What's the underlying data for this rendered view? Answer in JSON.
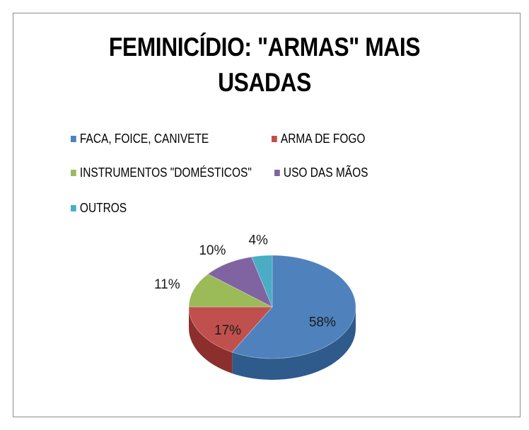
{
  "chart_data": {
    "type": "pie",
    "title": "FEMINICÍDIO: \"ARMAS\" MAIS USADAS",
    "title_lines": [
      "FEMINICÍDIO: \"ARMAS\" MAIS",
      "USADAS"
    ],
    "legend_position": "top",
    "slices": [
      {
        "label": "FACA, FOICE, CANIVETE",
        "value": 58,
        "value_label": "58%",
        "color": "#4f81bd",
        "side_color": "#2f5a8c"
      },
      {
        "label": "ARMA DE FOGO",
        "value": 17,
        "value_label": "17%",
        "color": "#c0504d",
        "side_color": "#8c2f2c"
      },
      {
        "label": "INSTRUMENTOS \"DOMÉSTICOS\"",
        "value": 11,
        "value_label": "11%",
        "color": "#9bbb59",
        "side_color": "#6f8a3a"
      },
      {
        "label": "USO DAS MÃOS",
        "value": 10,
        "value_label": "10%",
        "color": "#8064a2",
        "side_color": "#5a4578"
      },
      {
        "label": "OUTROS",
        "value": 4,
        "value_label": "4%",
        "color": "#4bacc6",
        "side_color": "#2e7d92"
      }
    ]
  }
}
